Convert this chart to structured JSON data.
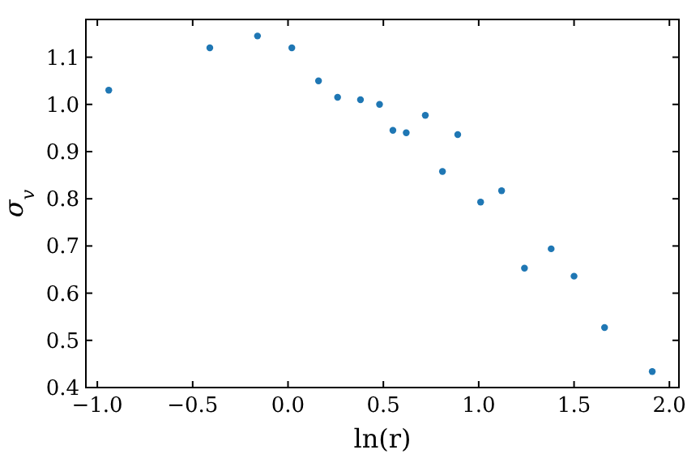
{
  "chart_data": {
    "type": "scatter",
    "xlabel": "ln(r)",
    "ylabel": "σ$_{v}$",
    "marker": "circle",
    "grid": false,
    "xlim": [
      -1.06,
      2.05
    ],
    "xticks": [
      {
        "value": -1,
        "label": "−1.0"
      },
      {
        "value": -0.5,
        "label": "−0.5"
      },
      {
        "value": 0,
        "label": "0.0"
      },
      {
        "value": 0.5,
        "label": "0.5"
      },
      {
        "value": 1,
        "label": "1.0"
      },
      {
        "value": 1.5,
        "label": "1.5"
      },
      {
        "value": 2,
        "label": "2.0"
      }
    ],
    "ylim": [
      0.4,
      1.18
    ],
    "yticks": [
      0.4,
      0.5,
      0.6,
      0.7,
      0.8,
      0.9,
      {
        "value": 1,
        "label": "1.0"
      },
      1.1
    ],
    "series": [
      {
        "color": "#1f77b4",
        "x": [
          -0.94,
          -0.41,
          -0.16,
          0.02,
          0.16,
          0.26,
          0.38,
          0.48,
          0.55,
          0.62,
          0.72,
          0.81,
          0.89,
          1.01,
          1.12,
          1.24,
          1.38,
          1.5,
          1.66,
          1.91
        ],
        "values": [
          1.03,
          1.12,
          1.145,
          1.12,
          1.05,
          1.015,
          1.01,
          1.0,
          0.945,
          0.94,
          0.977,
          0.858,
          0.936,
          0.793,
          0.817,
          0.653,
          0.694,
          0.636,
          0.527,
          0.434
        ]
      }
    ]
  }
}
